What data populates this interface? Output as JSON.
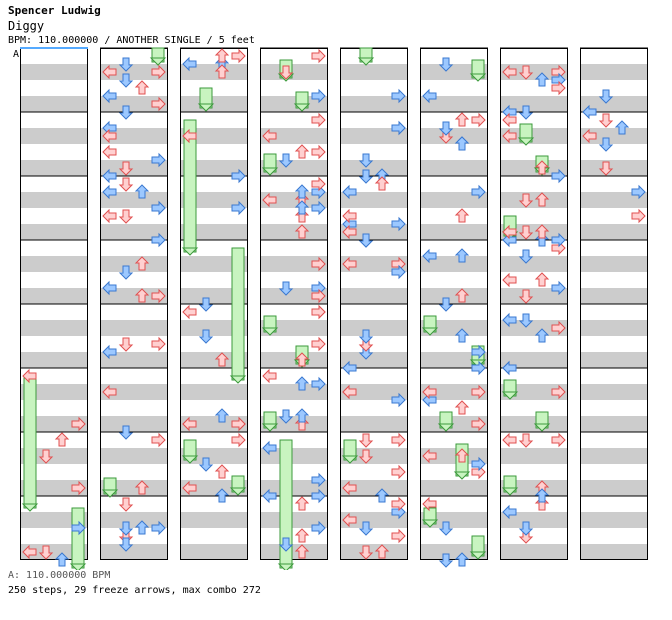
{
  "header": {
    "artist": "Spencer Ludwig",
    "title": "Diggy",
    "info": "BPM: 110.000000 / ANOTHER SINGLE / 5 feet"
  },
  "chart": {
    "section_label": "A",
    "columns": 8,
    "measures_per_column": 8,
    "lanes": [
      "left",
      "down",
      "up",
      "right"
    ],
    "colors": {
      "arrow_red_fill": "#ffd0d0",
      "arrow_red_stroke": "#e05050",
      "arrow_blue_fill": "#9cc8ff",
      "arrow_blue_stroke": "#3a78d0",
      "freeze_fill": "#c8f4c0",
      "freeze_stroke": "#3b9a3b",
      "stripe": "#cccccc",
      "bpm_marker": "#55aaff"
    }
  },
  "footer": {
    "bpm_line": "A: 110.000000 BPM",
    "stats": "250 steps, 29 freeze arrows, max combo 272"
  }
}
